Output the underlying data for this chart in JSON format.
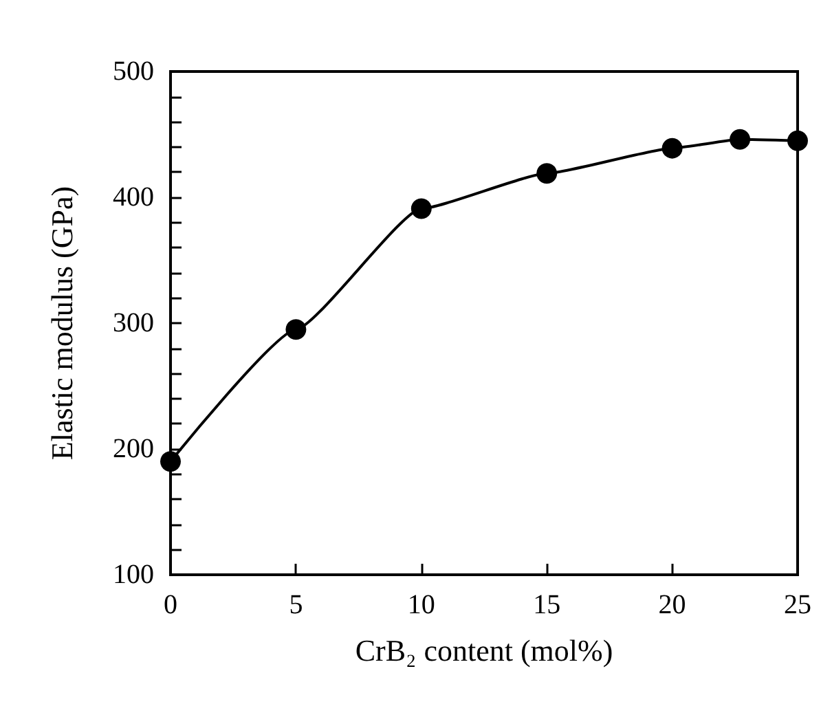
{
  "chart_data": {
    "type": "line",
    "xlabel": "CrB₂ content (mol%)",
    "ylabel": "Elastic modulus (GPa)",
    "xlim": [
      0,
      25
    ],
    "xticks": [
      0,
      5,
      10,
      15,
      20,
      25
    ],
    "ylim": [
      100,
      500
    ],
    "yticks": [
      100,
      200,
      300,
      400,
      500
    ],
    "series": [
      {
        "color": "#000000",
        "x": [
          0,
          5,
          10,
          15,
          20,
          22.7,
          25
        ],
        "values": [
          190,
          295,
          391,
          419,
          439,
          446,
          445
        ]
      }
    ],
    "marker": "circle",
    "line_style": "solid"
  }
}
